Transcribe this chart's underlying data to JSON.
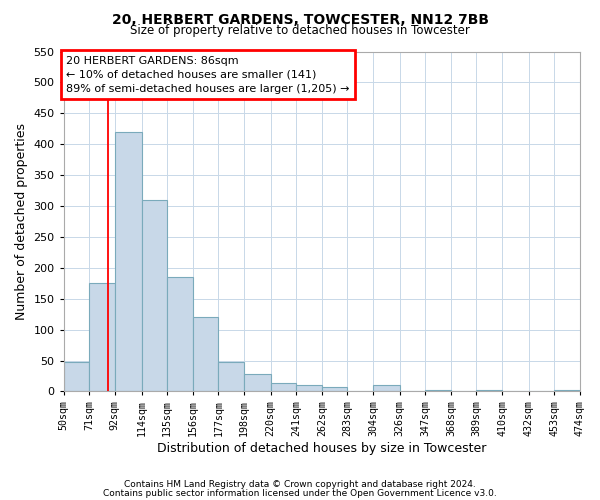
{
  "title": "20, HERBERT GARDENS, TOWCESTER, NN12 7BB",
  "subtitle": "Size of property relative to detached houses in Towcester",
  "xlabel": "Distribution of detached houses by size in Towcester",
  "ylabel": "Number of detached properties",
  "bar_heights": [
    47,
    175,
    420,
    310,
    185,
    120,
    47,
    28,
    13,
    10,
    7,
    0,
    10,
    0,
    3,
    0,
    2,
    0,
    0,
    2
  ],
  "bin_labels": [
    "50sqm",
    "71sqm",
    "92sqm",
    "114sqm",
    "135sqm",
    "156sqm",
    "177sqm",
    "198sqm",
    "220sqm",
    "241sqm",
    "262sqm",
    "283sqm",
    "304sqm",
    "326sqm",
    "347sqm",
    "368sqm",
    "389sqm",
    "410sqm",
    "432sqm",
    "453sqm",
    "474sqm"
  ],
  "bar_color": "#c8d8e8",
  "bar_edge_color": "#7aaabb",
  "red_line_x": 86,
  "ylim": [
    0,
    550
  ],
  "yticks": [
    0,
    50,
    100,
    150,
    200,
    250,
    300,
    350,
    400,
    450,
    500,
    550
  ],
  "annotation_text": "20 HERBERT GARDENS: 86sqm\n← 10% of detached houses are smaller (141)\n89% of semi-detached houses are larger (1,205) →",
  "footnote1": "Contains HM Land Registry data © Crown copyright and database right 2024.",
  "footnote2": "Contains public sector information licensed under the Open Government Licence v3.0.",
  "bin_edges": [
    50,
    71,
    92,
    114,
    135,
    156,
    177,
    198,
    220,
    241,
    262,
    283,
    304,
    326,
    347,
    368,
    389,
    410,
    432,
    453,
    474
  ]
}
